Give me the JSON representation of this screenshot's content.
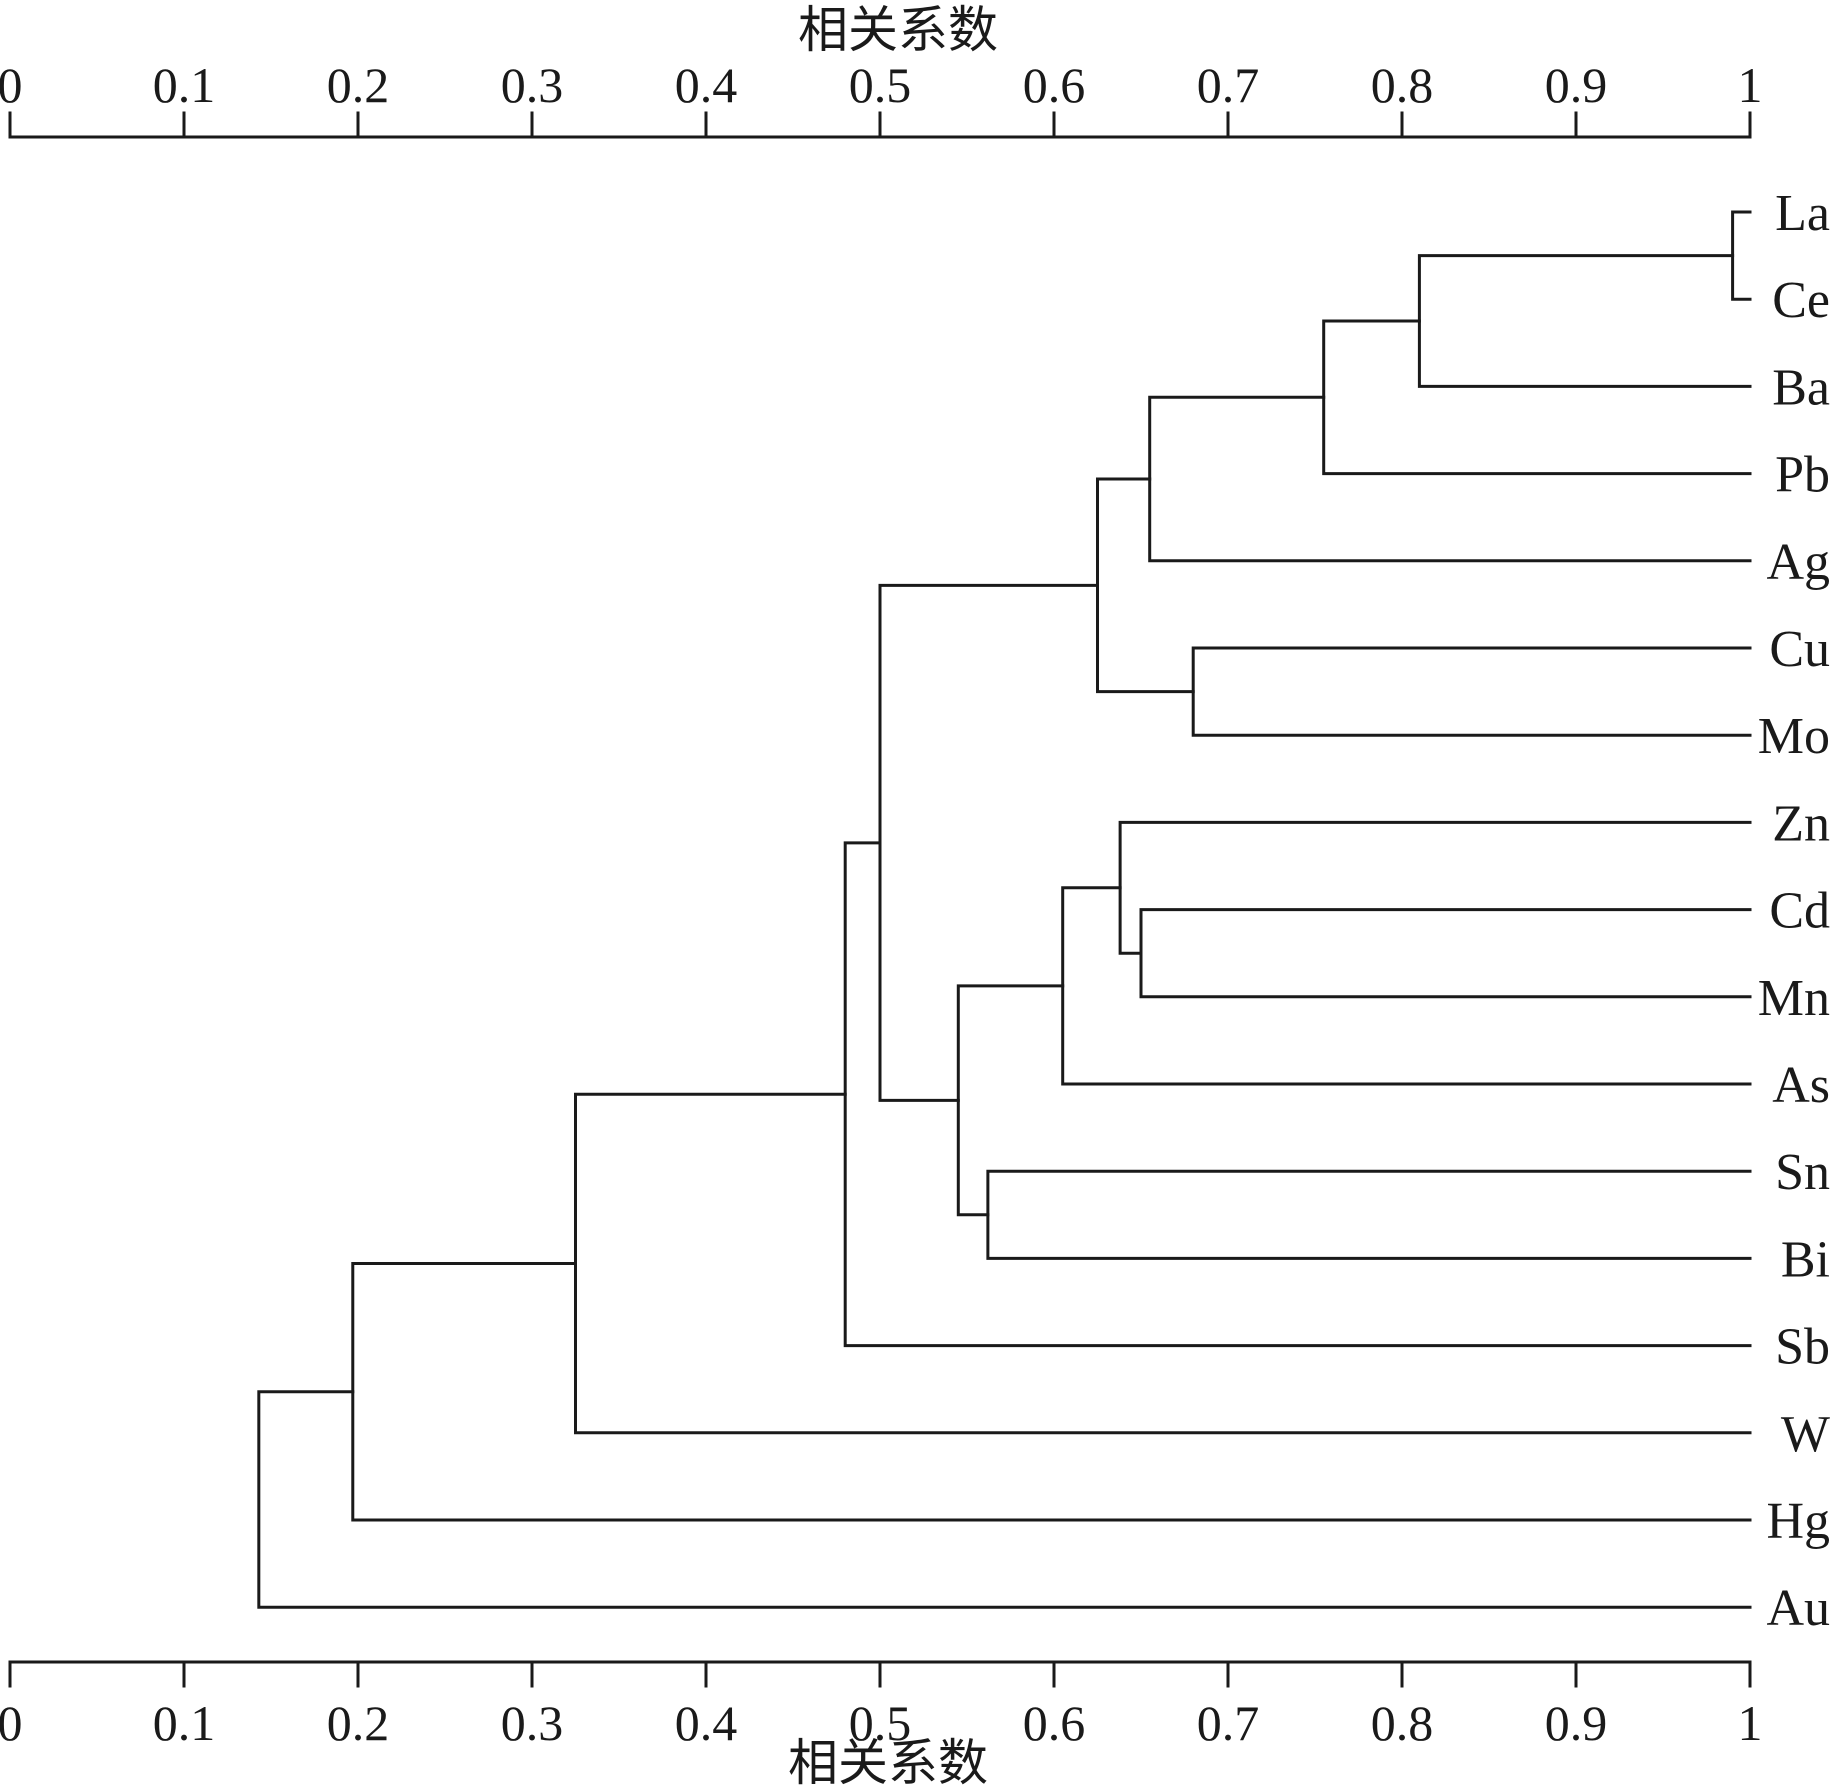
{
  "chart_data": {
    "type": "dendrogram",
    "axis_title": "相关系数",
    "ticks": [
      {
        "value": 0,
        "label": "0"
      },
      {
        "value": 0.1,
        "label": "0.1"
      },
      {
        "value": 0.2,
        "label": "0.2"
      },
      {
        "value": 0.3,
        "label": "0.3"
      },
      {
        "value": 0.4,
        "label": "0.4"
      },
      {
        "value": 0.5,
        "label": "0.5"
      },
      {
        "value": 0.6,
        "label": "0.6"
      },
      {
        "value": 0.7,
        "label": "0.7"
      },
      {
        "value": 0.8,
        "label": "0.8"
      },
      {
        "value": 0.9,
        "label": "0.9"
      },
      {
        "value": 1,
        "label": "1"
      }
    ],
    "xlim": [
      0,
      1
    ],
    "axes": [
      "top",
      "bottom"
    ],
    "leaves": [
      "La",
      "Ce",
      "Ba",
      "Pb",
      "Ag",
      "Cu",
      "Mo",
      "Zn",
      "Cd",
      "Mn",
      "As",
      "Sn",
      "Bi",
      "Sb",
      "W",
      "Hg",
      "Au"
    ],
    "merges": [
      {
        "children": [
          "La",
          "Ce"
        ],
        "similarity": 0.99
      },
      {
        "children": [
          "La-Ce",
          "Ba"
        ],
        "similarity": 0.81
      },
      {
        "children": [
          "La-Ce-Ba",
          "Pb"
        ],
        "similarity": 0.755
      },
      {
        "children": [
          "La-Ce-Ba-Pb",
          "Ag"
        ],
        "similarity": 0.655
      },
      {
        "children": [
          "Cu",
          "Mo"
        ],
        "similarity": 0.68
      },
      {
        "children": [
          "La-Ce-Ba-Pb-Ag",
          "Cu-Mo"
        ],
        "similarity": 0.625
      },
      {
        "children": [
          "Cd",
          "Mn"
        ],
        "similarity": 0.65
      },
      {
        "children": [
          "Zn",
          "Cd-Mn"
        ],
        "similarity": 0.638
      },
      {
        "children": [
          "Zn-Cd-Mn",
          "As"
        ],
        "similarity": 0.605
      },
      {
        "children": [
          "Sn",
          "Bi"
        ],
        "similarity": 0.562
      },
      {
        "children": [
          "Zn-Cd-Mn-As",
          "Sn-Bi"
        ],
        "similarity": 0.545
      },
      {
        "children": [
          "La-Ce-Ba-Pb-Ag-Cu-Mo",
          "Zn-Cd-Mn-As-Sn-Bi"
        ],
        "similarity": 0.5
      },
      {
        "children": [
          "La-Ce-Ba-Pb-Ag-Cu-Mo-Zn-Cd-Mn-As-Sn-Bi",
          "Sb"
        ],
        "similarity": 0.48
      },
      {
        "children": [
          "cluster-13",
          "W"
        ],
        "similarity": 0.325
      },
      {
        "children": [
          "cluster-14",
          "Hg"
        ],
        "similarity": 0.197
      },
      {
        "children": [
          "cluster-15",
          "Au"
        ],
        "similarity": 0.143
      }
    ]
  }
}
